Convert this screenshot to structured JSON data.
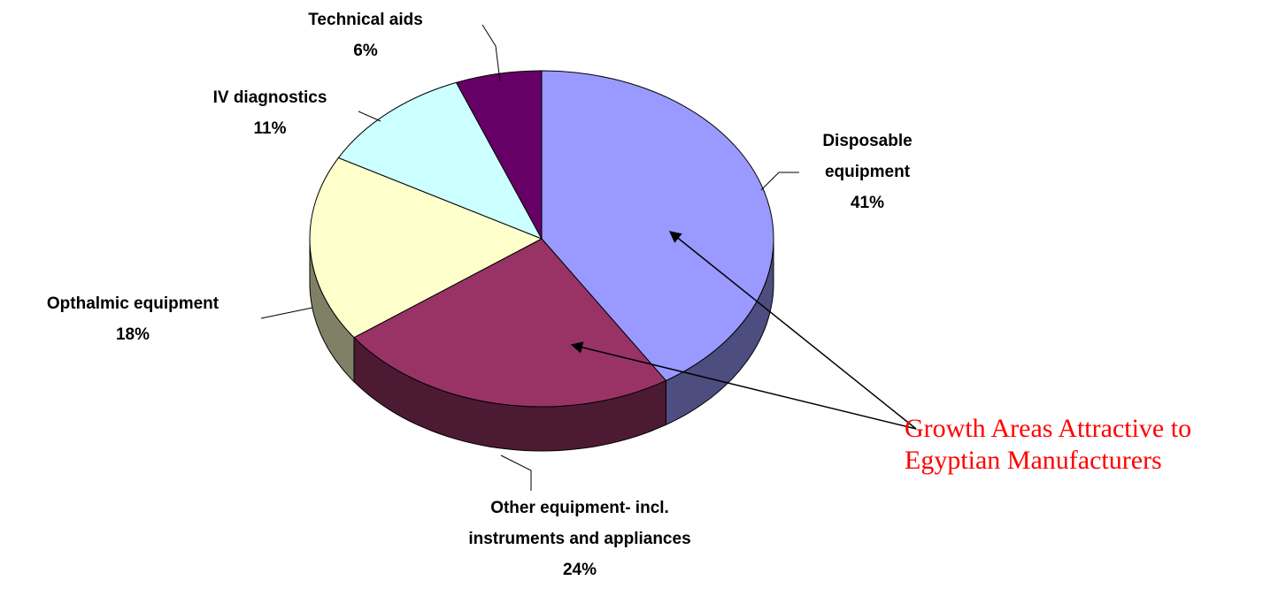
{
  "chart_data": {
    "type": "pie",
    "categories": [
      "Disposable equipment",
      "Other equipment- incl. instruments and appliances",
      "Opthalmic equipment",
      "IV diagnostics",
      "Technical aids"
    ],
    "values": [
      41,
      24,
      18,
      11,
      6
    ],
    "value_labels": [
      "41%",
      "24%",
      "18%",
      "11%",
      "6%"
    ],
    "colors": [
      "#9999ff",
      "#993366",
      "#ffffcc",
      "#ccffff",
      "#660066"
    ],
    "annotation": "Growth Areas Attractive to Egyptian Manufacturers"
  }
}
